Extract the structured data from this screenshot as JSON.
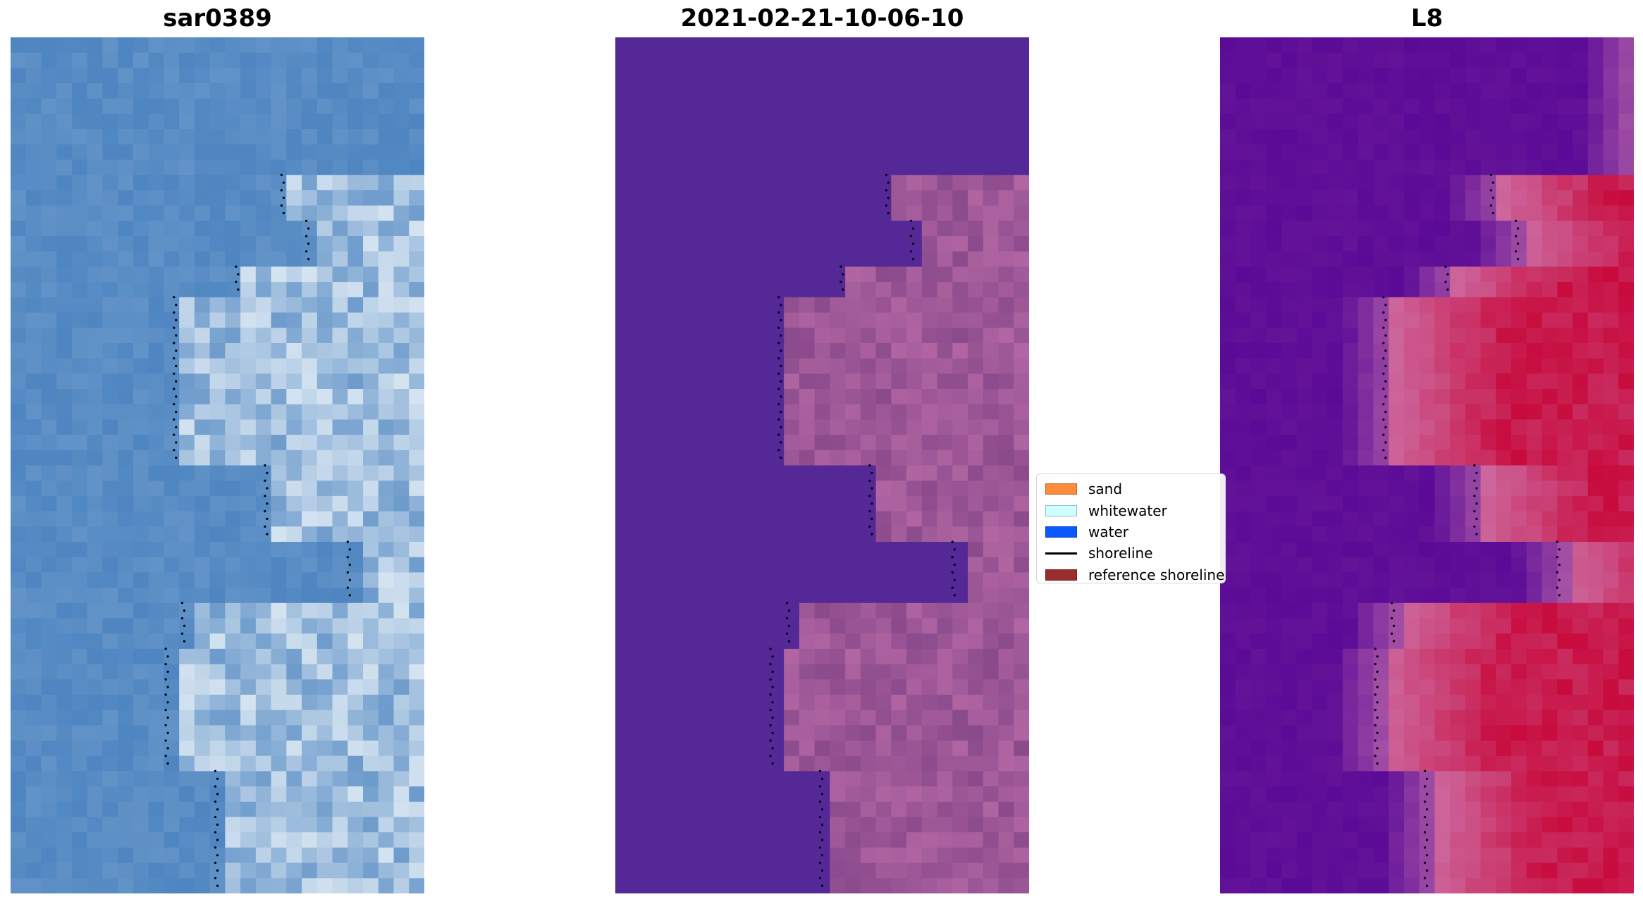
{
  "figure": {
    "panels": [
      {
        "id": "rgb",
        "title": "sar0389"
      },
      {
        "id": "classified",
        "title": "2021-02-21-10-06-10"
      },
      {
        "id": "index",
        "title": "L8"
      }
    ]
  },
  "legend": {
    "items": [
      {
        "label": "sand",
        "kind": "patch",
        "color": "#ff8c3c"
      },
      {
        "label": "whitewater",
        "kind": "patch",
        "color": "#ccffff"
      },
      {
        "label": "water",
        "kind": "patch",
        "color": "#0a5aff"
      },
      {
        "label": "shoreline",
        "kind": "line",
        "color": "#000000"
      },
      {
        "label": "reference shoreline",
        "kind": "patch",
        "color": "#992d2d"
      }
    ]
  },
  "colors": {
    "water_class": "#542896",
    "land_class": "#8a4a8c",
    "rgb_water": "#4f86c1",
    "index_low": "#5a0a96",
    "index_high": "#c80a3c",
    "shoreline_dots": "#000000"
  }
}
